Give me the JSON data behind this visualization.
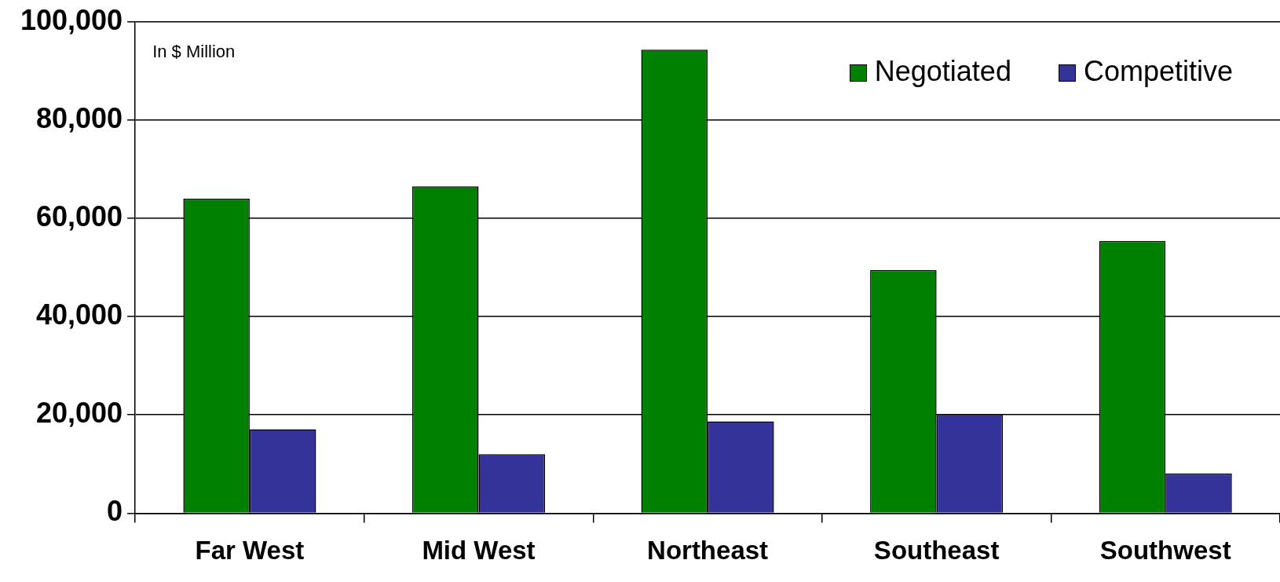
{
  "chart_data": {
    "type": "bar",
    "categories": [
      "Far West",
      "Mid West",
      "Northeast",
      "Southeast",
      "Southwest"
    ],
    "series": [
      {
        "name": "Negotiated",
        "color": "#008000",
        "values": [
          64000,
          66500,
          94300,
          49500,
          55400
        ]
      },
      {
        "name": "Competitive",
        "color": "#333399",
        "values": [
          17100,
          12000,
          18700,
          20000,
          8100
        ]
      }
    ],
    "ylim": [
      0,
      100000
    ],
    "yticks": [
      0,
      {
        "value": 20000,
        "label": "20,000"
      },
      {
        "value": 40000,
        "label": "40,000"
      },
      {
        "value": 60000,
        "label": "60,000"
      },
      {
        "value": 80000,
        "label": "80,000"
      },
      {
        "value": 100000,
        "label": "100,000"
      }
    ],
    "grid": "y",
    "legend": "top right",
    "annotations": [
      "In $ Million"
    ]
  }
}
